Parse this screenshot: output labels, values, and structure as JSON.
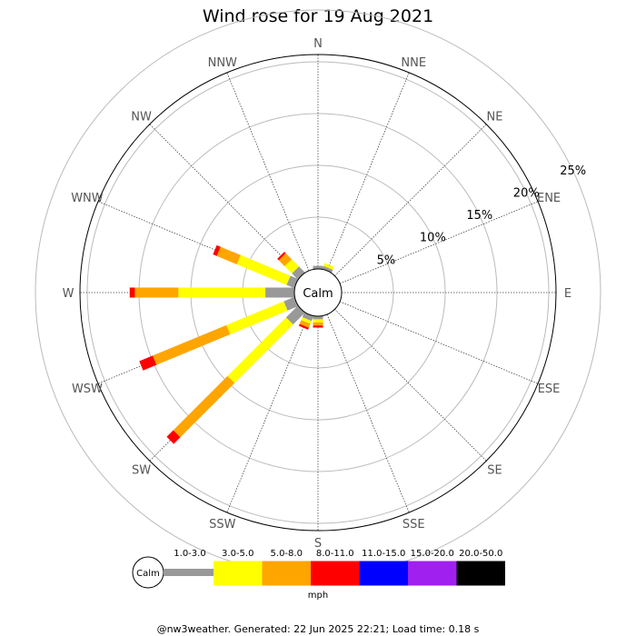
{
  "chart_data": {
    "type": "wind-rose",
    "title": "Wind rose for 19 Aug 2021",
    "directions": [
      "N",
      "NNE",
      "NE",
      "ENE",
      "E",
      "ESE",
      "SE",
      "SSE",
      "S",
      "SSW",
      "SW",
      "WSW",
      "W",
      "WNW",
      "NW",
      "NNW"
    ],
    "ring_labels": [
      "5%",
      "10%",
      "15%",
      "20%",
      "25%"
    ],
    "rings": [
      5,
      10,
      15,
      20,
      25
    ],
    "center_label": "Calm",
    "speed_bins": [
      {
        "label": "1.0-3.0",
        "color": "#999999"
      },
      {
        "label": "3.0-5.0",
        "color": "#ffff00"
      },
      {
        "label": "5.0-8.0",
        "color": "#ffa500"
      },
      {
        "label": "8.0-11.0",
        "color": "#ff0000"
      },
      {
        "label": "11.0-15.0",
        "color": "#0000ff"
      },
      {
        "label": "15.0-20.0",
        "color": "#a020f0"
      },
      {
        "label": "20.0-50.0",
        "color": "#000000"
      }
    ],
    "units": "mph",
    "series": [
      {
        "direction": "N",
        "values": [
          0.3,
          0,
          0,
          0,
          0,
          0,
          0
        ]
      },
      {
        "direction": "NNE",
        "values": [
          0.3,
          0.3,
          0,
          0,
          0,
          0,
          0
        ]
      },
      {
        "direction": "S",
        "values": [
          0.3,
          0.3,
          0.3,
          0.2,
          0,
          0,
          0
        ]
      },
      {
        "direction": "SSW",
        "values": [
          0.5,
          0.3,
          0.4,
          0.2,
          0,
          0,
          0
        ]
      },
      {
        "direction": "SW",
        "values": [
          1.6,
          8.0,
          7.4,
          0.9,
          0,
          0,
          0
        ]
      },
      {
        "direction": "WSW",
        "values": [
          1.1,
          6.0,
          7.7,
          1.4,
          0,
          0,
          0
        ]
      },
      {
        "direction": "W",
        "values": [
          2.8,
          8.4,
          4.2,
          0.5,
          0,
          0,
          0
        ]
      },
      {
        "direction": "WNW",
        "values": [
          0.8,
          5.2,
          2.1,
          0.4,
          0,
          0,
          0
        ]
      },
      {
        "direction": "NW",
        "values": [
          0.8,
          1.0,
          0.8,
          0.2,
          0,
          0,
          0
        ]
      }
    ]
  },
  "footer": "@nw3weather. Generated: 22 Jun 2025 22:21; Load time: 0.18 s"
}
